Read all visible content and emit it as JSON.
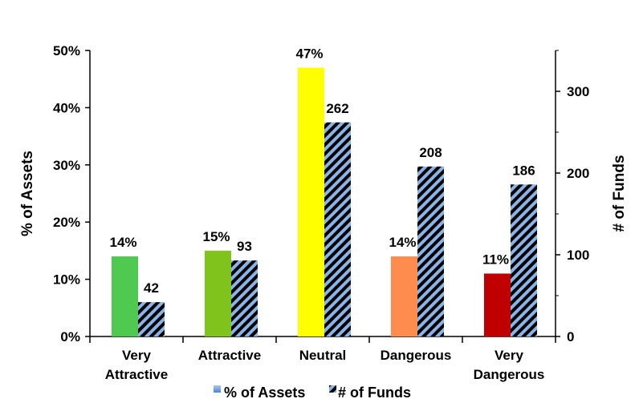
{
  "chart_data": {
    "type": "bar",
    "categories": [
      [
        "Very",
        "Attractive"
      ],
      [
        "Attractive"
      ],
      [
        "Neutral"
      ],
      [
        "Dangerous"
      ],
      [
        "Very",
        "Dangerous"
      ]
    ],
    "series": [
      {
        "name": "% of Assets",
        "axis": "left",
        "values": [
          14,
          15,
          47,
          14,
          11
        ],
        "labels": [
          "14%",
          "15%",
          "47%",
          "14%",
          "11%"
        ],
        "colors": [
          "#4fc94f",
          "#7fc31c",
          "#ffff00",
          "#ff8c4f",
          "#c00000"
        ]
      },
      {
        "name": "# of Funds",
        "axis": "right",
        "values": [
          42,
          93,
          262,
          208,
          186
        ],
        "labels": [
          "42",
          "93",
          "262",
          "208",
          "186"
        ],
        "pattern": "diagonal stripes, black and light blue"
      }
    ],
    "ylabel_left": "% of Assets",
    "ylabel_right": "# of Funds",
    "ylim_left": [
      0,
      50
    ],
    "yticks_left": [
      "0%",
      "10%",
      "20%",
      "30%",
      "40%",
      "50%"
    ],
    "ylim_right": [
      0,
      350
    ],
    "yticks_right": [
      "0",
      "100",
      "200",
      "300"
    ],
    "legend": {
      "placement": "bottom",
      "entries": [
        "% of Assets",
        "# of Funds"
      ]
    },
    "grid": false
  }
}
